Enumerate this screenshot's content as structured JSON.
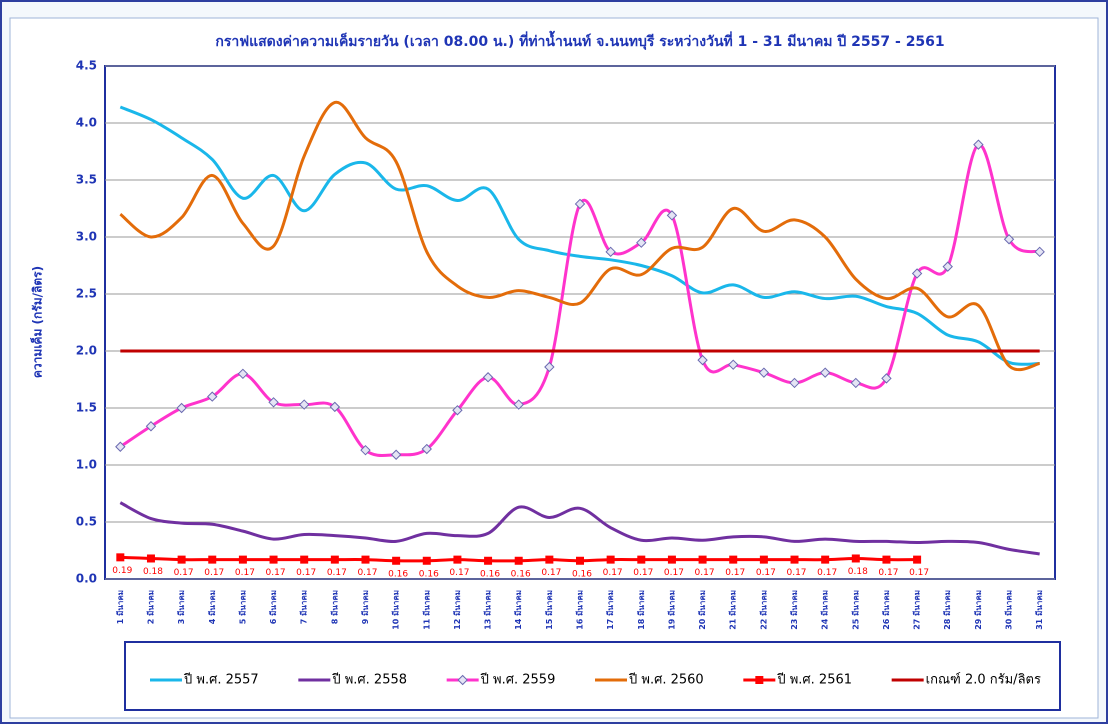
{
  "chart_data": {
    "type": "line",
    "title": "กราฟแสดงค่าความเค็มรายวัน (เวลา 08.00 น.) ที่ท่าน้ำนนท์ จ.นนทบุรี ระหว่างวันที่ 1 - 31 มีนาคม ปี 2557 - 2561",
    "y_label": "ความเค็ม (กรัม/ลิตร)",
    "categories": [
      "1 มีนาคม",
      "2 มีนาคม",
      "3 มีนาคม",
      "4 มีนาคม",
      "5 มีนาคม",
      "6 มีนาคม",
      "7 มีนาคม",
      "8 มีนาคม",
      "9 มีนาคม",
      "10 มีนาคม",
      "11 มีนาคม",
      "12 มีนาคม",
      "13 มีนาคม",
      "14 มีนาคม",
      "15 มีนาคม",
      "16 มีนาคม",
      "17 มีนาคม",
      "18 มีนาคม",
      "19 มีนาคม",
      "20 มีนาคม",
      "21 มีนาคม",
      "22 มีนาคม",
      "23 มีนาคม",
      "24 มีนาคม",
      "25 มีนาคม",
      "26 มีนาคม",
      "27 มีนาคม",
      "28 มีนาคม",
      "29 มีนาคม",
      "30 มีนาคม",
      "31 มีนาคม"
    ],
    "ylim": [
      0,
      4.5
    ],
    "yticks": [
      {
        "value": 0,
        "label": "0.0"
      },
      0.5,
      {
        "value": 1,
        "label": "1.0"
      },
      1.5,
      {
        "value": 2,
        "label": "2.0"
      },
      2.5,
      {
        "value": 3,
        "label": "3.0"
      },
      3.5,
      {
        "value": 4,
        "label": "4.0"
      },
      4.5
    ],
    "grid": true,
    "legend": "bottom",
    "series": [
      {
        "name": "ปี พ.ศ. 2557",
        "color": "#1ab7ea",
        "marker": "none",
        "values": [
          4.14,
          4.03,
          3.87,
          3.68,
          3.34,
          3.54,
          3.23,
          3.55,
          3.65,
          3.42,
          3.45,
          3.32,
          3.42,
          2.98,
          2.88,
          2.83,
          2.8,
          2.75,
          2.66,
          2.51,
          2.58,
          2.47,
          2.52,
          2.46,
          2.48,
          2.39,
          2.33,
          2.14,
          2.08,
          1.9,
          1.89
        ]
      },
      {
        "name": "ปี พ.ศ. 2558",
        "color": "#7030a0",
        "marker": "none",
        "values": [
          0.67,
          0.53,
          0.49,
          0.48,
          0.42,
          0.35,
          0.39,
          0.38,
          0.36,
          0.33,
          0.4,
          0.38,
          0.4,
          0.63,
          0.54,
          0.62,
          0.45,
          0.34,
          0.36,
          0.34,
          0.37,
          0.37,
          0.33,
          0.35,
          0.33,
          0.33,
          0.32,
          0.33,
          0.32,
          0.26,
          0.22
        ]
      },
      {
        "name": "ปี พ.ศ. 2559",
        "color": "#ff33cc",
        "marker": "diamond",
        "values": [
          1.16,
          1.34,
          1.5,
          1.6,
          1.8,
          1.55,
          1.53,
          1.51,
          1.13,
          1.09,
          1.14,
          1.48,
          1.77,
          1.53,
          1.86,
          3.29,
          2.87,
          2.95,
          3.19,
          1.92,
          1.88,
          1.81,
          1.72,
          1.81,
          1.72,
          1.76,
          2.68,
          2.74,
          3.81,
          2.98,
          2.87
        ]
      },
      {
        "name": "ปี พ.ศ. 2560",
        "color": "#e36c0a",
        "marker": "none",
        "values": [
          3.2,
          3.0,
          3.17,
          3.54,
          3.12,
          2.92,
          3.71,
          4.18,
          3.87,
          3.66,
          2.87,
          2.57,
          2.47,
          2.53,
          2.47,
          2.42,
          2.72,
          2.67,
          2.9,
          2.91,
          3.25,
          3.05,
          3.15,
          3.0,
          2.63,
          2.46,
          2.55,
          2.3,
          2.4,
          1.87,
          1.89
        ]
      },
      {
        "name": "ปี พ.ศ. 2561",
        "color": "#ff0000",
        "marker": "square",
        "data_labels": true,
        "values": [
          0.19,
          0.18,
          0.17,
          0.17,
          0.17,
          0.17,
          0.17,
          0.17,
          0.17,
          0.16,
          0.16,
          0.17,
          0.16,
          0.16,
          0.17,
          0.16,
          0.17,
          0.17,
          0.17,
          0.17,
          0.17,
          0.17,
          0.17,
          0.17,
          0.18,
          0.17,
          0.17,
          null,
          null,
          null,
          null
        ]
      },
      {
        "name": "เกณฑ์ 2.0 กรัม/ลิตร",
        "color": "#c00000",
        "marker": "none",
        "values": [
          2,
          2,
          2,
          2,
          2,
          2,
          2,
          2,
          2,
          2,
          2,
          2,
          2,
          2,
          2,
          2,
          2,
          2,
          2,
          2,
          2,
          2,
          2,
          2,
          2,
          2,
          2,
          2,
          2,
          2,
          2
        ]
      }
    ]
  }
}
